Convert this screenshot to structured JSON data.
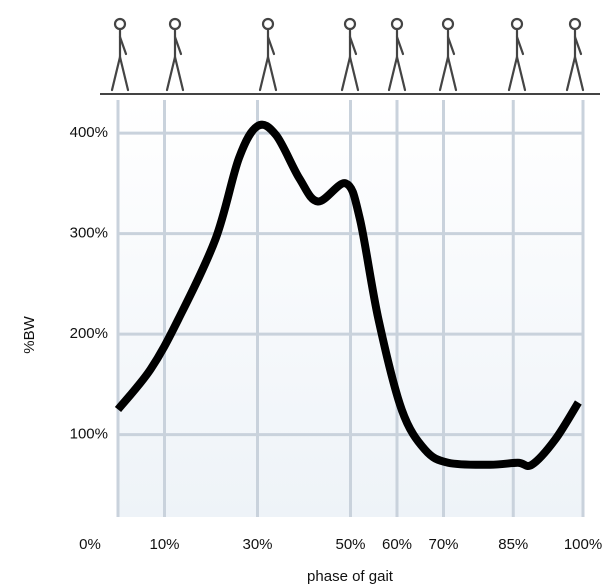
{
  "chart_data": {
    "type": "line",
    "xlabel": "phase of gait",
    "ylabel": "%BW",
    "x": [
      0,
      7,
      13,
      21,
      26,
      30,
      34,
      39,
      43,
      49,
      52,
      56,
      61,
      66,
      71,
      80,
      86,
      89,
      94,
      99
    ],
    "values": [
      125,
      165,
      215,
      295,
      375,
      407,
      398,
      355,
      332,
      350,
      315,
      215,
      125,
      85,
      72,
      70,
      72,
      70,
      95,
      132
    ],
    "color": "#000000",
    "xlim": [
      0,
      100
    ],
    "xticks": [
      {
        "value": 0,
        "label": "0%"
      },
      {
        "value": 10,
        "label": "10%"
      },
      {
        "value": 30,
        "label": "30%"
      },
      {
        "value": 50,
        "label": "50%"
      },
      {
        "value": 60,
        "label": "60%"
      },
      {
        "value": 70,
        "label": "70%"
      },
      {
        "value": 85,
        "label": "85%"
      },
      {
        "value": 100,
        "label": "100%"
      }
    ],
    "ylim": [
      18,
      433
    ],
    "yticks": [
      {
        "value": 100,
        "label": "100%"
      },
      {
        "value": 200,
        "label": "200%"
      },
      {
        "value": 300,
        "label": "300%"
      },
      {
        "value": 400,
        "label": "400%"
      }
    ],
    "grid": true
  }
}
